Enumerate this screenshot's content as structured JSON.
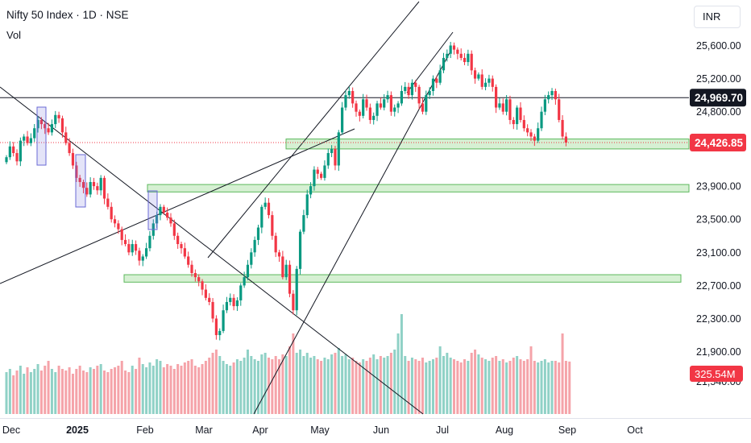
{
  "header": {
    "title": "Nifty 50 Index · 1D · NSE",
    "indicator": "Vol",
    "currency": "INR"
  },
  "chart_data": {
    "type": "candlestick",
    "symbol": "Nifty 50 Index",
    "interval": "1D",
    "exchange": "NSE",
    "price_axis": {
      "range": [
        21400,
        26000
      ],
      "ticks": [
        {
          "value": 25600,
          "label": "25,600.00"
        },
        {
          "value": 25200,
          "label": "25,200.00"
        },
        {
          "value": 24800,
          "label": "24,800.00"
        },
        {
          "value": 23900,
          "label": "23,900.00"
        },
        {
          "value": 23500,
          "label": "23,500.00"
        },
        {
          "value": 23100,
          "label": "23,100.00"
        },
        {
          "value": 22700,
          "label": "22,700.00"
        },
        {
          "value": 22300,
          "label": "22,300.00"
        },
        {
          "value": 21900,
          "label": "21,900.00"
        },
        {
          "value": 21540,
          "label": "21,540.00"
        }
      ]
    },
    "time_axis": {
      "labels": [
        {
          "label": "Dec",
          "bold": false
        },
        {
          "label": "2025",
          "bold": true
        },
        {
          "label": "Feb",
          "bold": false
        },
        {
          "label": "Mar",
          "bold": false
        },
        {
          "label": "Apr",
          "bold": false
        },
        {
          "label": "May",
          "bold": false
        },
        {
          "label": "Jun",
          "bold": false
        },
        {
          "label": "Jul",
          "bold": false
        },
        {
          "label": "Aug",
          "bold": false
        },
        {
          "label": "Sep",
          "bold": false
        },
        {
          "label": "Oct",
          "bold": false
        }
      ]
    },
    "price_badges": [
      {
        "value": 24969.7,
        "label": "24,969.70",
        "color": "#131722"
      },
      {
        "value": 24426.85,
        "label": "24,426.85",
        "color": "#f23645"
      }
    ],
    "volume_badge": {
      "label": "325.54M",
      "color": "#f23645"
    },
    "colors": {
      "up": "#089981",
      "down": "#f23645",
      "up_volume": "#8fd1c6",
      "down_volume": "#f5a3a9",
      "zone_fill": "#c8ebc4",
      "zone_border": "#5cb85c",
      "highlight_box": "#6a6ad6"
    },
    "closes": [
      24250,
      24380,
      24300,
      24200,
      24450,
      24500,
      24420,
      24480,
      24600,
      24700,
      24650,
      24600,
      24550,
      24650,
      24760,
      24720,
      24550,
      24420,
      24300,
      24150,
      24000,
      23950,
      23880,
      23800,
      23950,
      23900,
      23850,
      24000,
      23750,
      23650,
      23500,
      23450,
      23380,
      23250,
      23200,
      23100,
      23200,
      23120,
      23000,
      23050,
      23150,
      23300,
      23450,
      23550,
      23650,
      23580,
      23520,
      23450,
      23300,
      23200,
      23150,
      23050,
      22950,
      22850,
      22800,
      22750,
      22650,
      22550,
      22500,
      22300,
      22100,
      22150,
      22400,
      22500,
      22550,
      22450,
      22520,
      22700,
      22800,
      22950,
      23100,
      23250,
      23400,
      23650,
      23700,
      23550,
      23300,
      23100,
      23050,
      22800,
      22950,
      22600,
      22400,
      22900,
      23350,
      23550,
      23800,
      23900,
      24100,
      24050,
      24000,
      24150,
      24300,
      24350,
      24150,
      24550,
      24850,
      25000,
      25050,
      24900,
      24800,
      24750,
      24950,
      24850,
      24700,
      24750,
      24900,
      24850,
      24950,
      25000,
      24800,
      24850,
      24900,
      25050,
      25100,
      25000,
      25150,
      25100,
      24900,
      24800,
      25000,
      25050,
      25200,
      25150,
      25300,
      25450,
      25500,
      25600,
      25550,
      25500,
      25450,
      25400,
      25500,
      25300,
      25200,
      25250,
      25100,
      25150,
      25200,
      25100,
      24850,
      24900,
      24800,
      24950,
      24700,
      24650,
      24850,
      24700,
      24600,
      24550,
      24500,
      24450,
      24600,
      24800,
      24950,
      25000,
      25050,
      24950,
      24700,
      24500,
      24426.85
    ],
    "volumes": [
      260,
      280,
      240,
      270,
      300,
      250,
      290,
      260,
      280,
      310,
      270,
      300,
      330,
      280,
      260,
      300,
      280,
      270,
      290,
      250,
      280,
      300,
      270,
      260,
      290,
      280,
      300,
      310,
      270,
      260,
      280,
      290,
      300,
      330,
      270,
      260,
      300,
      280,
      350,
      310,
      290,
      320,
      300,
      340,
      330,
      290,
      310,
      300,
      280,
      310,
      300,
      320,
      330,
      340,
      300,
      290,
      310,
      330,
      350,
      380,
      400,
      360,
      330,
      310,
      300,
      320,
      340,
      330,
      350,
      400,
      360,
      340,
      330,
      370,
      380,
      350,
      340,
      360,
      340,
      370,
      360,
      420,
      500,
      380,
      400,
      360,
      380,
      350,
      360,
      340,
      330,
      350,
      340,
      370,
      380,
      410,
      360,
      370,
      340,
      350,
      330,
      320,
      340,
      330,
      350,
      370,
      340,
      360,
      350,
      360,
      380,
      400,
      500,
      620,
      360,
      330,
      350,
      340,
      330,
      350,
      320,
      330,
      340,
      350,
      420,
      360,
      380,
      350,
      340,
      330,
      320,
      340,
      330,
      380,
      400,
      370,
      350,
      340,
      330,
      350,
      360,
      330,
      340,
      320,
      330,
      350,
      360,
      340,
      330,
      340,
      420,
      330,
      320,
      330,
      340,
      320,
      330,
      330,
      320,
      500,
      330,
      325.54
    ],
    "horizontal_lines": [
      24969.7,
      24426.85
    ],
    "support_zones": [
      [
        24350,
        24470
      ],
      [
        23830,
        23920
      ],
      [
        22740,
        22830
      ]
    ]
  }
}
